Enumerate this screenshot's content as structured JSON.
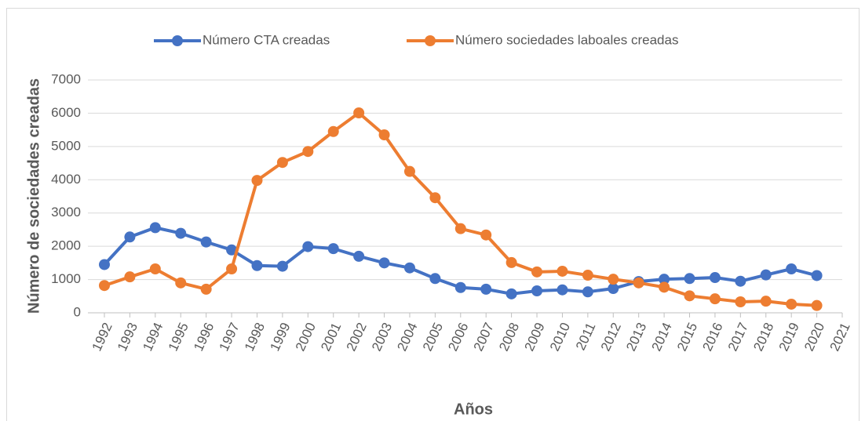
{
  "chart_data": {
    "type": "line",
    "x_label": "Años",
    "y_label": "Número de sociedades creadas",
    "categories": [
      "1992",
      "1993",
      "1994",
      "1995",
      "1996",
      "1997",
      "1998",
      "1999",
      "2000",
      "2001",
      "2002",
      "2003",
      "2004",
      "2005",
      "2006",
      "2007",
      "2008",
      "2009",
      "2010",
      "2011",
      "2012",
      "2013",
      "2014",
      "2015",
      "2016",
      "2017",
      "2018",
      "2019",
      "2020",
      "2021"
    ],
    "series": [
      {
        "name": "Número CTA creadas",
        "color": "#4472c4",
        "values": [
          1450,
          2280,
          2560,
          2390,
          2130,
          1890,
          1420,
          1400,
          1990,
          1930,
          1700,
          1500,
          1350,
          1030,
          760,
          710,
          570,
          660,
          690,
          630,
          730,
          940,
          1010,
          1030,
          1060,
          950,
          1140,
          1320,
          1120,
          null
        ]
      },
      {
        "name": "Número sociedades laboales creadas",
        "color": "#ed7d31",
        "values": [
          820,
          1080,
          1320,
          900,
          710,
          1320,
          3980,
          4520,
          4850,
          5450,
          6010,
          5350,
          4250,
          3460,
          2530,
          2340,
          1510,
          1230,
          1250,
          1130,
          1010,
          900,
          770,
          510,
          420,
          330,
          350,
          260,
          220,
          null
        ]
      }
    ],
    "ylim": [
      0,
      7000
    ],
    "yticks": [
      0,
      1000,
      2000,
      3000,
      4000,
      5000,
      6000,
      7000
    ],
    "grid": true,
    "legend": "top"
  }
}
